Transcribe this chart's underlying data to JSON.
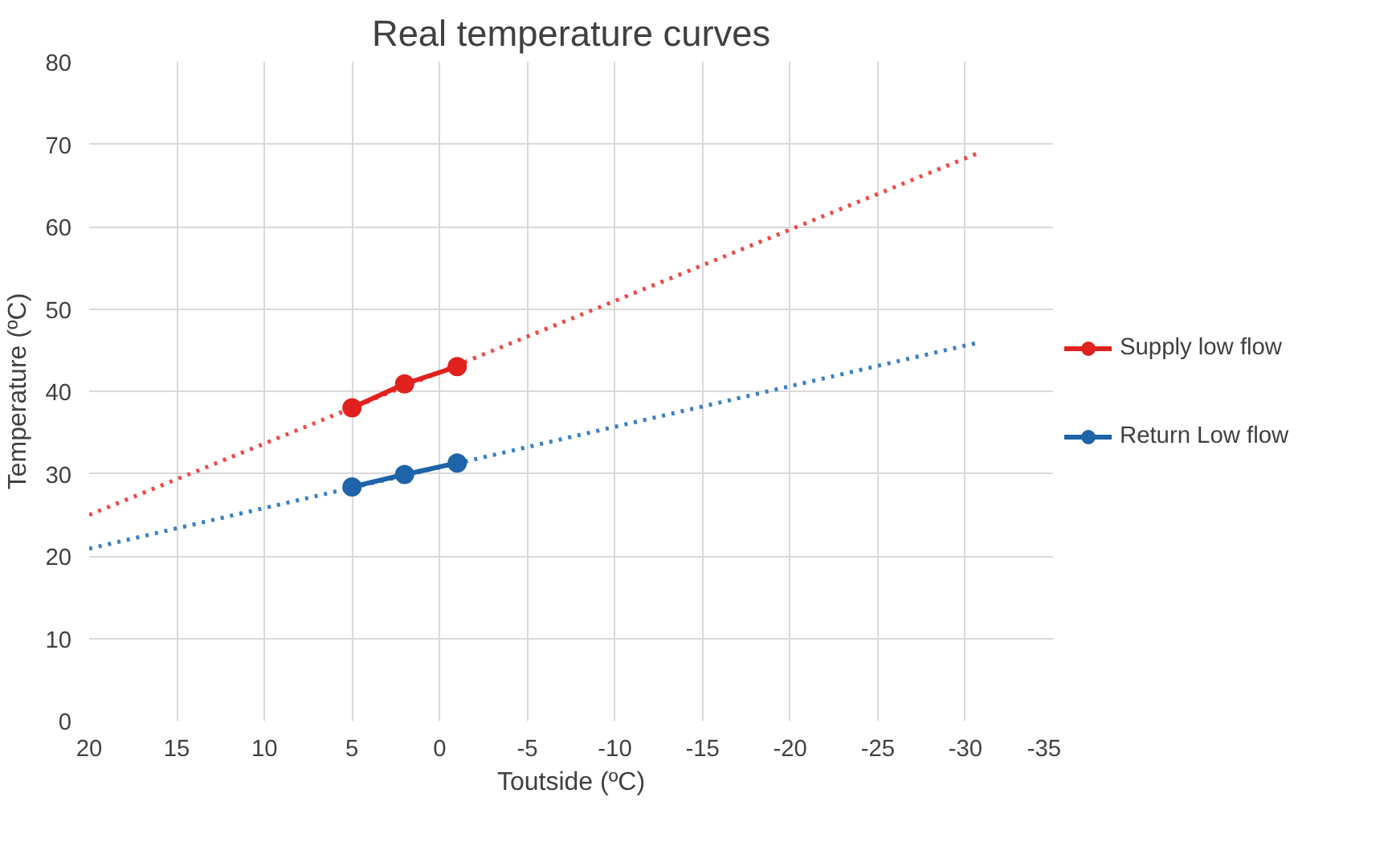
{
  "chart_data": {
    "type": "line",
    "title": "Real temperature curves",
    "xlabel": "Toutside (ºC)",
    "ylabel": "Temperature (ºC)",
    "xlim": [
      20,
      -35
    ],
    "xticks": [
      20,
      15,
      10,
      5,
      0,
      -5,
      -10,
      -15,
      -20,
      -25,
      -30,
      -35
    ],
    "ylim": [
      0,
      80
    ],
    "yticks": [
      0,
      10,
      20,
      30,
      40,
      50,
      60,
      70,
      80
    ],
    "grid": true,
    "legend": "right",
    "marker": "circle",
    "line_style": "solid",
    "series": [
      {
        "name": "Supply low flow",
        "color": "#e0211d",
        "x": [
          5,
          2,
          -1
        ],
        "values": [
          38,
          40.9,
          43
        ]
      },
      {
        "name": "Return Low flow",
        "color": "#1f63a8",
        "x": [
          5,
          2,
          -1
        ],
        "values": [
          28.4,
          29.9,
          31.3
        ]
      },
      {
        "color": "#ef4a45",
        "x": [
          20,
          -30.7
        ],
        "values": [
          25,
          68.9
        ],
        "marker": "none",
        "line_style": "dotted"
      },
      {
        "color": "#3a80c4",
        "x": [
          20,
          -30.7
        ],
        "values": [
          20.9,
          45.9
        ],
        "marker": "none",
        "line_style": "dotted"
      }
    ]
  }
}
